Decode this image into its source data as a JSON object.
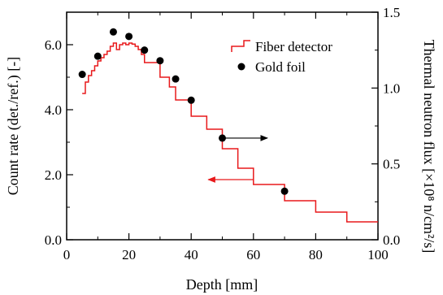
{
  "chart_data": {
    "type": "line",
    "xlabel": "Depth [mm]",
    "ylabel_left": "Count rate (det./ref.) [-]",
    "ylabel_right": "Thermal neutron flux [×10⁸ n/cm²/s]",
    "xlim": [
      0,
      100
    ],
    "ylim_left": [
      0,
      7.0
    ],
    "ylim_right": [
      0,
      1.5
    ],
    "x_ticks": [
      "0",
      "20",
      "40",
      "60",
      "80",
      "100"
    ],
    "y_left_ticks": [
      "0.0",
      "2.0",
      "4.0",
      "6.0"
    ],
    "y_right_ticks": [
      "0.0",
      "0.5",
      "1.0",
      "1.5"
    ],
    "legend_position": "top-right",
    "series": [
      {
        "name": "Fiber detector",
        "axis": "left",
        "color": "#e8191b",
        "style": "step",
        "x": [
          5,
          6,
          7,
          8,
          9,
          10,
          11,
          12,
          13,
          14,
          15,
          16,
          17,
          18,
          19,
          20,
          21,
          22,
          23,
          24,
          25,
          27,
          30,
          33,
          35,
          38,
          40,
          43,
          45,
          50,
          55,
          60,
          70,
          80,
          90,
          100
        ],
        "y": [
          4.5,
          4.85,
          5.05,
          5.2,
          5.35,
          5.5,
          5.6,
          5.7,
          5.8,
          5.95,
          6.05,
          5.85,
          6.0,
          6.05,
          6.0,
          6.05,
          6.02,
          5.95,
          5.85,
          5.7,
          5.45,
          5.45,
          5.0,
          4.7,
          4.3,
          4.3,
          3.8,
          3.8,
          3.4,
          2.8,
          2.2,
          1.7,
          1.2,
          0.85,
          0.55,
          0.55
        ]
      },
      {
        "name": "Gold foil",
        "axis": "right",
        "color": "#000000",
        "style": "marker",
        "x": [
          5,
          10,
          15,
          20,
          25,
          30,
          35,
          40,
          50,
          70
        ],
        "y": [
          1.09,
          1.21,
          1.37,
          1.34,
          1.25,
          1.18,
          1.06,
          0.92,
          0.67,
          0.32
        ]
      }
    ]
  }
}
